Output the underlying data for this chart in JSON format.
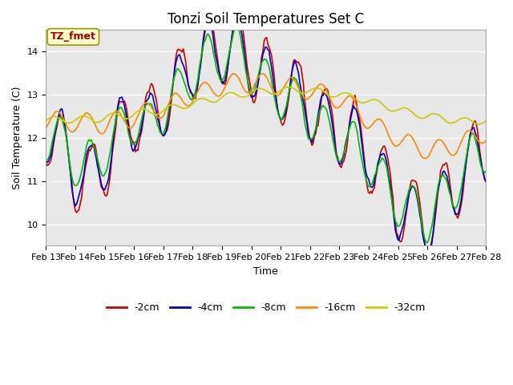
{
  "title": "Tonzi Soil Temperatures Set C",
  "xlabel": "Time",
  "ylabel": "Soil Temperature (C)",
  "ylim": [
    9.5,
    14.5
  ],
  "xlim": [
    0,
    15
  ],
  "x_tick_labels": [
    "Feb 13",
    "Feb 14",
    "Feb 15",
    "Feb 16",
    "Feb 17",
    "Feb 18",
    "Feb 19",
    "Feb 20",
    "Feb 21",
    "Feb 22",
    "Feb 23",
    "Feb 24",
    "Feb 25",
    "Feb 26",
    "Feb 27",
    "Feb 28"
  ],
  "legend_labels": [
    "-2cm",
    "-4cm",
    "-8cm",
    "-16cm",
    "-32cm"
  ],
  "line_colors": [
    "#cc0000",
    "#0000cc",
    "#00bb00",
    "#ff8800",
    "#cccc00"
  ],
  "line_widths": [
    1.2,
    1.2,
    1.2,
    1.2,
    1.2
  ],
  "fig_bg_color": "#ffffff",
  "plot_bg_color": "#e8e8e8",
  "annotation_text": "TZ_fmet",
  "annotation_bg": "#ffffcc",
  "annotation_border": "#999900",
  "title_fontsize": 12,
  "label_fontsize": 9,
  "tick_fontsize": 8,
  "legend_fontsize": 9
}
